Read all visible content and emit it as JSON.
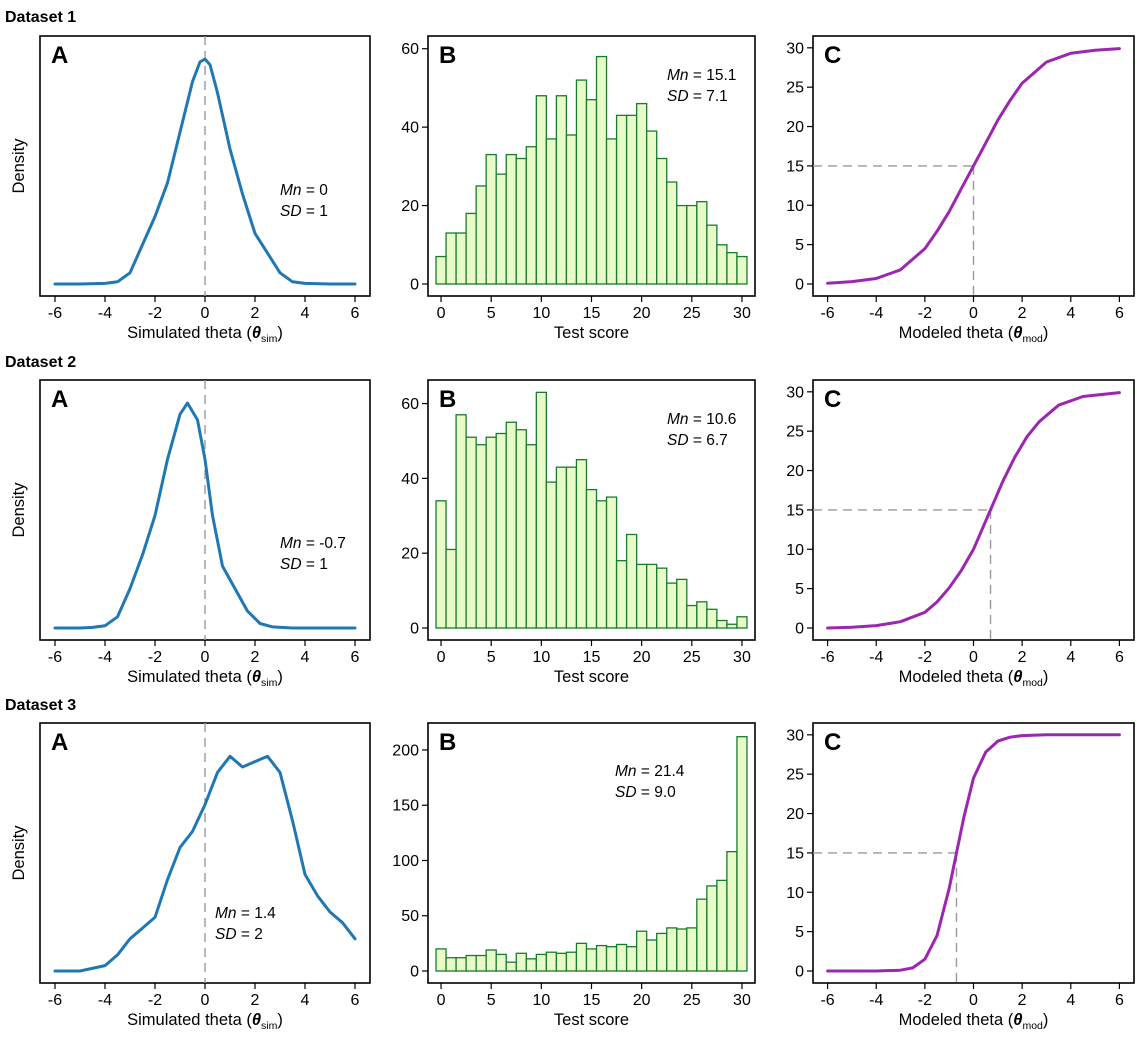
{
  "colors": {
    "density": "#1f78b4",
    "hist_fill": "#e8fac8",
    "hist_stroke": "#1a7a2e",
    "icc": "#9b27b0",
    "guide": "#999999"
  },
  "datasets": [
    {
      "title": "Dataset 1",
      "panelA": {
        "letter": "A",
        "ylabel": "Density",
        "xlabel": "Simulated theta (",
        "xlabel_theta": "θ",
        "xlabel_sub": "sim",
        "xlabel_close": ")",
        "mn_label": "Mn",
        "mn_value": "0",
        "sd_label": "SD",
        "sd_value": "1",
        "xticks": [
          "-6",
          "-4",
          "-2",
          "0",
          "2",
          "4",
          "6"
        ]
      },
      "panelB": {
        "letter": "B",
        "xlabel": "Test score",
        "mn_label": "Mn",
        "mn_value": "15.1",
        "sd_label": "SD",
        "sd_value": "7.1",
        "xticks": [
          "0",
          "5",
          "10",
          "15",
          "20",
          "25",
          "30"
        ],
        "yticks": [
          "0",
          "20",
          "40",
          "60"
        ]
      },
      "panelC": {
        "letter": "C",
        "xlabel": "Modeled theta (",
        "xlabel_theta": "θ",
        "xlabel_sub": "mod",
        "xlabel_close": ")",
        "xticks": [
          "-6",
          "-4",
          "-2",
          "0",
          "2",
          "4",
          "6"
        ],
        "yticks": [
          "0",
          "5",
          "10",
          "15",
          "20",
          "25",
          "30"
        ]
      }
    },
    {
      "title": "Dataset 2",
      "panelA": {
        "letter": "A",
        "ylabel": "Density",
        "xlabel": "Simulated theta (",
        "xlabel_theta": "θ",
        "xlabel_sub": "sim",
        "xlabel_close": ")",
        "mn_label": "Mn",
        "mn_value": "-0.7",
        "sd_label": "SD",
        "sd_value": "1",
        "xticks": [
          "-6",
          "-4",
          "-2",
          "0",
          "2",
          "4",
          "6"
        ]
      },
      "panelB": {
        "letter": "B",
        "xlabel": "Test score",
        "mn_label": "Mn",
        "mn_value": "10.6",
        "sd_label": "SD",
        "sd_value": "6.7",
        "xticks": [
          "0",
          "5",
          "10",
          "15",
          "20",
          "25",
          "30"
        ],
        "yticks": [
          "0",
          "20",
          "40",
          "60"
        ]
      },
      "panelC": {
        "letter": "C",
        "xlabel": "Modeled theta (",
        "xlabel_theta": "θ",
        "xlabel_sub": "mod",
        "xlabel_close": ")",
        "xticks": [
          "-6",
          "-4",
          "-2",
          "0",
          "2",
          "4",
          "6"
        ],
        "yticks": [
          "0",
          "5",
          "10",
          "15",
          "20",
          "25",
          "30"
        ]
      }
    },
    {
      "title": "Dataset 3",
      "panelA": {
        "letter": "A",
        "ylabel": "Density",
        "xlabel": "Simulated theta (",
        "xlabel_theta": "θ",
        "xlabel_sub": "sim",
        "xlabel_close": ")",
        "mn_label": "Mn",
        "mn_value": "1.4",
        "sd_label": "SD",
        "sd_value": "2",
        "xticks": [
          "-6",
          "-4",
          "-2",
          "0",
          "2",
          "4",
          "6"
        ]
      },
      "panelB": {
        "letter": "B",
        "xlabel": "Test score",
        "mn_label": "Mn",
        "mn_value": "21.4",
        "sd_label": "SD",
        "sd_value": "9.0",
        "xticks": [
          "0",
          "5",
          "10",
          "15",
          "20",
          "25",
          "30"
        ],
        "yticks": [
          "0",
          "50",
          "100",
          "150",
          "200"
        ]
      },
      "panelC": {
        "letter": "C",
        "xlabel": "Modeled theta (",
        "xlabel_theta": "θ",
        "xlabel_sub": "mod",
        "xlabel_close": ")",
        "xticks": [
          "-6",
          "-4",
          "-2",
          "0",
          "2",
          "4",
          "6"
        ],
        "yticks": [
          "0",
          "5",
          "10",
          "15",
          "20",
          "25",
          "30"
        ]
      }
    }
  ],
  "chart_data": [
    {
      "dataset": "Dataset 1",
      "panel": "A",
      "type": "line",
      "xlabel": "Simulated theta (θsim)",
      "ylabel": "Density",
      "xlim": [
        -6,
        6
      ],
      "ylim": [
        0,
        0.42
      ],
      "reference_line_x": 0,
      "x": [
        -6,
        -5,
        -4,
        -3.5,
        -3,
        -2.5,
        -2,
        -1.5,
        -1,
        -0.5,
        -0.2,
        0,
        0.2,
        0.5,
        1,
        1.5,
        2,
        2.5,
        3,
        3.5,
        4,
        5,
        6
      ],
      "y": [
        0,
        0,
        0.001,
        0.004,
        0.02,
        0.07,
        0.12,
        0.18,
        0.27,
        0.36,
        0.395,
        0.4,
        0.39,
        0.34,
        0.24,
        0.16,
        0.09,
        0.055,
        0.02,
        0.004,
        0.001,
        0,
        0
      ]
    },
    {
      "dataset": "Dataset 1",
      "panel": "B",
      "type": "bar",
      "xlabel": "Test score",
      "ylabel": "",
      "xlim": [
        0,
        30
      ],
      "ylim": [
        0,
        62
      ],
      "x": [
        0,
        1,
        2,
        3,
        4,
        5,
        6,
        7,
        8,
        9,
        10,
        11,
        12,
        13,
        14,
        15,
        16,
        17,
        18,
        19,
        20,
        21,
        22,
        23,
        24,
        25,
        26,
        27,
        28,
        29,
        30
      ],
      "values": [
        7,
        13,
        13,
        18,
        25,
        33,
        28,
        33,
        32,
        35,
        48,
        37,
        48,
        38,
        52,
        47,
        58,
        37,
        43,
        43,
        46,
        39,
        32,
        26,
        20,
        20,
        21,
        15,
        10,
        8,
        7
      ]
    },
    {
      "dataset": "Dataset 1",
      "panel": "C",
      "type": "line",
      "xlabel": "Modeled theta (θmod)",
      "ylabel": "",
      "xlim": [
        -6,
        6
      ],
      "ylim": [
        0,
        31
      ],
      "reference_point": [
        0,
        15
      ],
      "x": [
        -6,
        -5,
        -4,
        -3,
        -2,
        -1.5,
        -1,
        -0.5,
        0,
        0.5,
        1,
        1.5,
        2,
        3,
        4,
        5,
        6
      ],
      "y": [
        0.1,
        0.3,
        0.7,
        1.8,
        4.5,
        6.7,
        9.2,
        12.1,
        15,
        17.9,
        20.8,
        23.3,
        25.5,
        28.2,
        29.3,
        29.7,
        29.9
      ]
    },
    {
      "dataset": "Dataset 2",
      "panel": "A",
      "type": "line",
      "xlabel": "Simulated theta (θsim)",
      "ylabel": "Density",
      "xlim": [
        -6,
        6
      ],
      "ylim": [
        0,
        0.42
      ],
      "reference_line_x": 0,
      "x": [
        -6,
        -5,
        -4.5,
        -4,
        -3.5,
        -3,
        -2.5,
        -2,
        -1.5,
        -1,
        -0.7,
        -0.3,
        0,
        0.3,
        0.7,
        1.2,
        1.7,
        2.2,
        2.7,
        3.5,
        4.5,
        6
      ],
      "y": [
        0,
        0,
        0.001,
        0.004,
        0.02,
        0.07,
        0.13,
        0.2,
        0.3,
        0.38,
        0.4,
        0.37,
        0.3,
        0.2,
        0.11,
        0.07,
        0.03,
        0.008,
        0.002,
        0,
        0,
        0
      ]
    },
    {
      "dataset": "Dataset 2",
      "panel": "B",
      "type": "bar",
      "xlabel": "Test score",
      "ylabel": "",
      "xlim": [
        0,
        30
      ],
      "ylim": [
        0,
        65
      ],
      "x": [
        0,
        1,
        2,
        3,
        4,
        5,
        6,
        7,
        8,
        9,
        10,
        11,
        12,
        13,
        14,
        15,
        16,
        17,
        18,
        19,
        20,
        21,
        22,
        23,
        24,
        25,
        26,
        27,
        28,
        29,
        30
      ],
      "values": [
        34,
        21,
        57,
        51,
        49,
        51,
        52,
        55,
        53,
        49,
        63,
        39,
        43,
        43,
        45,
        37,
        34,
        35,
        18,
        25,
        17,
        17,
        16,
        12,
        13,
        6,
        7,
        5,
        2,
        1,
        3
      ]
    },
    {
      "dataset": "Dataset 2",
      "panel": "C",
      "type": "line",
      "xlabel": "Modeled theta (θmod)",
      "ylabel": "",
      "xlim": [
        -6,
        6
      ],
      "ylim": [
        0,
        31
      ],
      "reference_point": [
        0.7,
        15
      ],
      "x": [
        -6,
        -5,
        -4,
        -3,
        -2,
        -1.5,
        -1,
        -0.5,
        0,
        0.7,
        1.2,
        1.7,
        2.2,
        2.7,
        3.5,
        4.5,
        6
      ],
      "y": [
        0,
        0.1,
        0.3,
        0.8,
        2,
        3.3,
        5.1,
        7.3,
        10,
        15,
        18.6,
        21.7,
        24.3,
        26.2,
        28.3,
        29.4,
        29.9
      ]
    },
    {
      "dataset": "Dataset 3",
      "panel": "A",
      "type": "line",
      "xlabel": "Simulated theta (θsim)",
      "ylabel": "Density",
      "xlim": [
        -6,
        6
      ],
      "ylim": [
        0,
        0.22
      ],
      "reference_line_x": 0,
      "x": [
        -6,
        -5,
        -4,
        -3.5,
        -3,
        -2.5,
        -2,
        -1.5,
        -1,
        -0.5,
        0,
        0.5,
        1,
        1.5,
        2,
        2.5,
        3,
        3.5,
        4,
        4.5,
        5,
        5.5,
        6
      ],
      "y": [
        0,
        0,
        0.005,
        0.015,
        0.03,
        0.04,
        0.05,
        0.085,
        0.115,
        0.13,
        0.155,
        0.185,
        0.2,
        0.19,
        0.195,
        0.2,
        0.185,
        0.14,
        0.09,
        0.07,
        0.055,
        0.045,
        0.03
      ]
    },
    {
      "dataset": "Dataset 3",
      "panel": "B",
      "type": "bar",
      "xlabel": "Test score",
      "ylabel": "",
      "xlim": [
        0,
        30
      ],
      "ylim": [
        0,
        220
      ],
      "x": [
        0,
        1,
        2,
        3,
        4,
        5,
        6,
        7,
        8,
        9,
        10,
        11,
        12,
        13,
        14,
        15,
        16,
        17,
        18,
        19,
        20,
        21,
        22,
        23,
        24,
        25,
        26,
        27,
        28,
        29,
        30
      ],
      "values": [
        20,
        12,
        12,
        14,
        14,
        19,
        15,
        8,
        16,
        11,
        15,
        17,
        16,
        17,
        25,
        20,
        23,
        22,
        24,
        22,
        36,
        28,
        34,
        39,
        38,
        39,
        65,
        77,
        82,
        108,
        212
      ]
    },
    {
      "dataset": "Dataset 3",
      "panel": "C",
      "type": "line",
      "xlabel": "Modeled theta (θmod)",
      "ylabel": "",
      "xlim": [
        -6,
        6
      ],
      "ylim": [
        0,
        31
      ],
      "reference_point": [
        -0.7,
        15
      ],
      "x": [
        -6,
        -4,
        -3,
        -2.5,
        -2,
        -1.5,
        -1,
        -0.7,
        -0.4,
        0,
        0.5,
        1,
        1.5,
        2,
        3,
        6
      ],
      "y": [
        0,
        0,
        0.1,
        0.4,
        1.5,
        4.5,
        10.5,
        15,
        19.5,
        24.5,
        27.8,
        29.2,
        29.7,
        29.9,
        30,
        30
      ]
    }
  ]
}
